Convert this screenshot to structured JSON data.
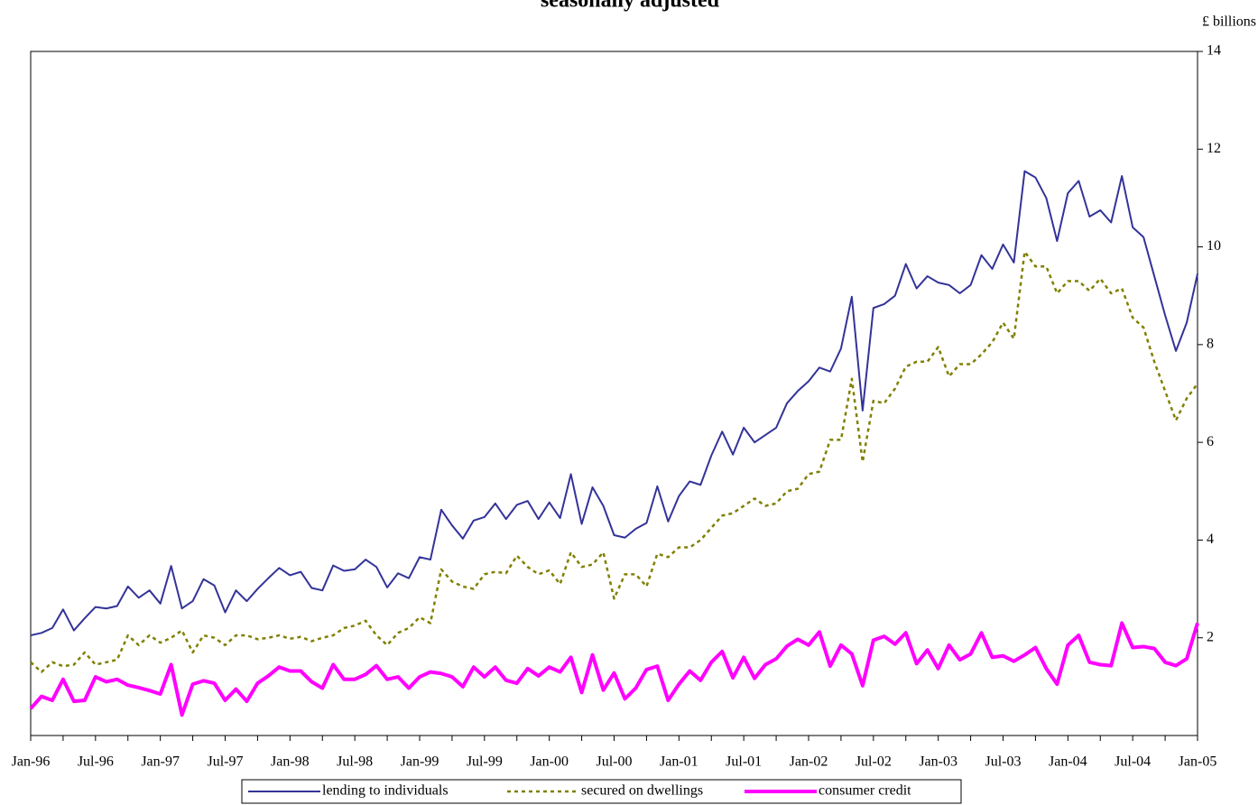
{
  "chart_data": {
    "type": "line",
    "title": "seasonally adjusted",
    "y_axis_label": "£ billions",
    "categories": [
      "Jan-96",
      null,
      null,
      null,
      null,
      null,
      "Jul-96",
      null,
      null,
      null,
      null,
      null,
      "Jan-97",
      null,
      null,
      null,
      null,
      null,
      "Jul-97",
      null,
      null,
      null,
      null,
      null,
      "Jan-98",
      null,
      null,
      null,
      null,
      null,
      "Jul-98",
      null,
      null,
      null,
      null,
      null,
      "Jan-99",
      null,
      null,
      null,
      null,
      null,
      "Jul-99",
      null,
      null,
      null,
      null,
      null,
      "Jan-00",
      null,
      null,
      null,
      null,
      null,
      "Jul-00",
      null,
      null,
      null,
      null,
      null,
      "Jan-01",
      null,
      null,
      null,
      null,
      null,
      "Jul-01",
      null,
      null,
      null,
      null,
      null,
      "Jan-02",
      null,
      null,
      null,
      null,
      null,
      "Jul-02",
      null,
      null,
      null,
      null,
      null,
      "Jan-03",
      null,
      null,
      null,
      null,
      null,
      "Jul-03",
      null,
      null,
      null,
      null,
      null,
      "Jan-04",
      null,
      null,
      null,
      null,
      null,
      "Jul-04",
      null,
      null,
      null,
      null,
      null,
      "Jan-05"
    ],
    "series": [
      {
        "name": "lending to individuals",
        "color": "#333399",
        "dash": "solid",
        "width": 2,
        "values": [
          2.05,
          2.1,
          2.2,
          2.58,
          2.15,
          2.4,
          2.63,
          2.6,
          2.65,
          3.05,
          2.82,
          2.97,
          2.7,
          3.47,
          2.6,
          2.75,
          3.2,
          3.07,
          2.52,
          2.97,
          2.75,
          3.0,
          3.22,
          3.43,
          3.28,
          3.35,
          3.02,
          2.97,
          3.48,
          3.37,
          3.4,
          3.6,
          3.45,
          3.03,
          3.32,
          3.22,
          3.65,
          3.6,
          4.62,
          4.3,
          4.03,
          4.4,
          4.47,
          4.75,
          4.43,
          4.72,
          4.8,
          4.43,
          4.77,
          4.45,
          5.35,
          4.33,
          5.08,
          4.7,
          4.1,
          4.05,
          4.23,
          4.35,
          5.1,
          4.38,
          4.9,
          5.2,
          5.13,
          5.73,
          6.22,
          5.75,
          6.3,
          6.0,
          6.15,
          6.3,
          6.8,
          7.05,
          7.25,
          7.53,
          7.45,
          7.92,
          8.98,
          6.65,
          8.75,
          8.83,
          9.0,
          9.65,
          9.15,
          9.4,
          9.27,
          9.22,
          9.05,
          9.22,
          9.83,
          9.55,
          10.05,
          9.68,
          11.55,
          11.42,
          11.0,
          10.12,
          11.1,
          11.35,
          10.62,
          10.75,
          10.5,
          11.45,
          10.4,
          10.2,
          9.4,
          8.6,
          7.87,
          8.45,
          9.45
        ]
      },
      {
        "name": "secured on dwellings",
        "color": "#808000",
        "dash": "dotted",
        "width": 2.5,
        "values": [
          1.5,
          1.3,
          1.5,
          1.42,
          1.45,
          1.7,
          1.45,
          1.5,
          1.55,
          2.05,
          1.85,
          2.05,
          1.9,
          2.0,
          2.15,
          1.7,
          2.05,
          2.0,
          1.85,
          2.05,
          2.05,
          1.97,
          2.0,
          2.05,
          1.98,
          2.02,
          1.93,
          2.0,
          2.05,
          2.2,
          2.25,
          2.35,
          2.05,
          1.85,
          2.1,
          2.2,
          2.42,
          2.3,
          3.4,
          3.15,
          3.05,
          3.0,
          3.3,
          3.35,
          3.32,
          3.68,
          3.45,
          3.3,
          3.38,
          3.1,
          3.75,
          3.45,
          3.5,
          3.75,
          2.8,
          3.3,
          3.3,
          3.05,
          3.72,
          3.65,
          3.85,
          3.85,
          4.0,
          4.25,
          4.5,
          4.55,
          4.7,
          4.85,
          4.7,
          4.75,
          5.0,
          5.05,
          5.35,
          5.4,
          6.05,
          6.05,
          7.3,
          5.6,
          6.85,
          6.8,
          7.1,
          7.55,
          7.65,
          7.65,
          7.95,
          7.35,
          7.6,
          7.6,
          7.8,
          8.05,
          8.45,
          8.12,
          9.9,
          9.6,
          9.6,
          9.05,
          9.3,
          9.3,
          9.1,
          9.35,
          9.05,
          9.15,
          8.55,
          8.35,
          7.65,
          7.05,
          6.45,
          6.9,
          7.2
        ]
      },
      {
        "name": "consumer credit",
        "color": "#ff00ff",
        "dash": "solid",
        "width": 4,
        "values": [
          0.55,
          0.8,
          0.72,
          1.15,
          0.7,
          0.72,
          1.2,
          1.1,
          1.15,
          1.03,
          0.98,
          0.92,
          0.85,
          1.45,
          0.42,
          1.05,
          1.12,
          1.07,
          0.72,
          0.95,
          0.7,
          1.07,
          1.22,
          1.4,
          1.32,
          1.32,
          1.1,
          0.97,
          1.45,
          1.15,
          1.15,
          1.25,
          1.43,
          1.15,
          1.2,
          0.97,
          1.2,
          1.3,
          1.27,
          1.2,
          1.0,
          1.4,
          1.2,
          1.4,
          1.13,
          1.07,
          1.37,
          1.22,
          1.4,
          1.3,
          1.6,
          0.88,
          1.65,
          0.93,
          1.28,
          0.75,
          0.97,
          1.35,
          1.42,
          0.72,
          1.05,
          1.32,
          1.13,
          1.5,
          1.72,
          1.18,
          1.6,
          1.17,
          1.45,
          1.57,
          1.83,
          1.97,
          1.85,
          2.12,
          1.42,
          1.85,
          1.67,
          1.02,
          1.95,
          2.03,
          1.87,
          2.1,
          1.47,
          1.75,
          1.37,
          1.85,
          1.55,
          1.67,
          2.1,
          1.6,
          1.63,
          1.52,
          1.65,
          1.8,
          1.37,
          1.05,
          1.85,
          2.05,
          1.5,
          1.45,
          1.43,
          2.3,
          1.8,
          1.82,
          1.78,
          1.5,
          1.43,
          1.57,
          2.3
        ]
      }
    ],
    "ylim": [
      0,
      14
    ],
    "yticks": [
      2,
      4,
      6,
      8,
      10,
      12,
      14
    ],
    "y_axis_side": "right",
    "grid": false,
    "legend": "bottom"
  }
}
